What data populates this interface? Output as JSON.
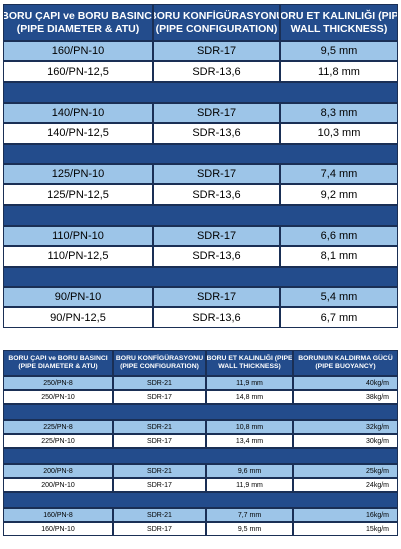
{
  "tables": [
    {
      "headers": [
        [
          "BORU ÇAPI ve BORU BASINCI",
          "(PIPE DIAMETER & ATU)"
        ],
        [
          "BORU KONFİGÜRASYONU",
          "(PIPE CONFIGURATION)"
        ],
        [
          "BORU ET KALINLIĞI (PIPE",
          "WALL THICKNESS)"
        ]
      ],
      "groups": [
        [
          [
            "160/PN-10",
            "SDR-17",
            "9,5 mm"
          ],
          [
            "160/PN-12,5",
            "SDR-13,6",
            "11,8 mm"
          ]
        ],
        [
          [
            "140/PN-10",
            "SDR-17",
            "8,3 mm"
          ],
          [
            "140/PN-12,5",
            "SDR-13,6",
            "10,3 mm"
          ]
        ],
        [
          [
            "125/PN-10",
            "SDR-17",
            "7,4 mm"
          ],
          [
            "125/PN-12,5",
            "SDR-13,6",
            "9,2 mm"
          ]
        ],
        [
          [
            "110/PN-10",
            "SDR-17",
            "6,6 mm"
          ],
          [
            "110/PN-12,5",
            "SDR-13,6",
            "8,1 mm"
          ]
        ],
        [
          [
            "90/PN-10",
            "SDR-17",
            "5,4 mm"
          ],
          [
            "90/PN-12,5",
            "SDR-13,6",
            "6,7 mm"
          ]
        ]
      ]
    },
    {
      "headers": [
        [
          "BORU ÇAPI ve BORU BASINCI",
          "(PIPE DIAMETER & ATU)"
        ],
        [
          "BORU KONFİGÜRASYONU",
          "(PIPE CONFIGURATION)"
        ],
        [
          "BORU ET KALINLIĞI (PIPE",
          "WALL THICKNESS)"
        ],
        [
          "BORUNUN KALDIRMA GÜCÜ",
          "(PIPE BUOYANCY)"
        ]
      ],
      "groups": [
        [
          [
            "250/PN-8",
            "SDR-21",
            "11,9 mm",
            "40kg/m"
          ],
          [
            "250/PN-10",
            "SDR-17",
            "14,8 mm",
            "38kg/m"
          ]
        ],
        [
          [
            "225/PN-8",
            "SDR-21",
            "10,8 mm",
            "32kg/m"
          ],
          [
            "225/PN-10",
            "SDR-17",
            "13,4 mm",
            "30kg/m"
          ]
        ],
        [
          [
            "200/PN-8",
            "SDR-21",
            "9,6 mm",
            "25kg/m"
          ],
          [
            "200/PN-10",
            "SDR-17",
            "11,9 mm",
            "24kg/m"
          ]
        ],
        [
          [
            "160/PN-8",
            "SDR-21",
            "7,7 mm",
            "16kg/m"
          ],
          [
            "160/PN-10",
            "SDR-17",
            "9,5 mm",
            "15kg/m"
          ]
        ]
      ]
    }
  ]
}
